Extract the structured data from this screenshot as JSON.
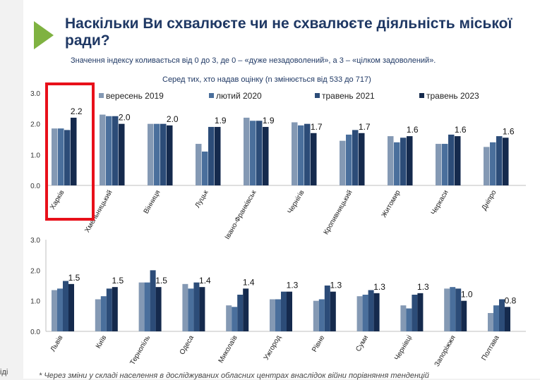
{
  "header": {
    "title": "Наскільки Ви схвалюєте чи не схвалюєте діяльність міської ради?",
    "subtitle": "Значення індексу коливається від 0 до 3, де 0 – «дуже незадоволений», а 3 – «цілком задоволений».",
    "caption": "Серед тих, хто надав оцінку (n змінюється від 533 до 717)"
  },
  "footnote": "* Через зміни у складі населення в досліджуваних обласних центрах внаслідок війни порівняння тенденцій",
  "edge_text": "іді",
  "colors": {
    "s2019": "#8499b4",
    "s2020": "#4a6f9c",
    "s2021": "#2c4c78",
    "s2023": "#152a4d",
    "highlight": "#e8101a",
    "arrow": "#7fb241"
  },
  "chart_data": [
    {
      "type": "bar",
      "title": "",
      "ylim": [
        0,
        3
      ],
      "yticks": [
        "0.0",
        "1.0",
        "2.0",
        "3.0"
      ],
      "legend": [
        "вересень 2019",
        "лютий 2020",
        "травень 2021",
        "травень 2023"
      ],
      "legend_position": "top",
      "categories": [
        "Харків",
        "Хмельницький",
        "Вінниця",
        "Луцьк",
        "Івано-Франківськ",
        "Чернігів",
        "Кропивницький",
        "Житомир",
        "Черкаси",
        "Дніпро"
      ],
      "series": [
        {
          "name": "вересень 2019",
          "values": [
            1.85,
            2.3,
            2.0,
            1.35,
            2.2,
            2.05,
            1.45,
            1.6,
            1.35,
            1.25
          ]
        },
        {
          "name": "лютий 2020",
          "values": [
            1.85,
            2.25,
            2.0,
            1.1,
            2.1,
            1.95,
            1.65,
            1.4,
            1.35,
            1.4
          ]
        },
        {
          "name": "травень 2021",
          "values": [
            1.8,
            2.25,
            2.0,
            1.9,
            2.1,
            2.0,
            1.8,
            1.55,
            1.65,
            1.6
          ]
        },
        {
          "name": "травень 2023",
          "values": [
            2.2,
            2.0,
            1.95,
            1.9,
            1.9,
            1.7,
            1.7,
            1.6,
            1.6,
            1.55
          ]
        }
      ],
      "labels": [
        "2.2",
        "2.0",
        "2.0",
        "1.9",
        "1.9",
        "1.7",
        "1.7",
        "1.6",
        "1.6",
        "1.6"
      ]
    },
    {
      "type": "bar",
      "title": "",
      "ylim": [
        0,
        3
      ],
      "yticks": [
        "0.0",
        "1.0",
        "2.0",
        "3.0"
      ],
      "categories": [
        "Львів",
        "Київ",
        "Тернопіль",
        "Одеса",
        "Миколаїв",
        "Ужгород",
        "Рівне",
        "Суми",
        "Чернівці",
        "Запоріжжя",
        "Полтава"
      ],
      "series": [
        {
          "name": "вересень 2019",
          "values": [
            1.35,
            1.05,
            1.6,
            1.55,
            0.85,
            1.05,
            1.0,
            1.15,
            0.85,
            1.4,
            0.6
          ]
        },
        {
          "name": "лютий 2020",
          "values": [
            1.4,
            1.15,
            1.6,
            1.4,
            0.8,
            1.05,
            1.05,
            1.2,
            0.75,
            1.45,
            0.85
          ]
        },
        {
          "name": "травень 2021",
          "values": [
            1.65,
            1.4,
            2.0,
            1.6,
            1.2,
            1.3,
            1.5,
            1.35,
            1.2,
            1.4,
            1.05
          ]
        },
        {
          "name": "травень 2023",
          "values": [
            1.55,
            1.45,
            1.45,
            1.45,
            1.4,
            1.3,
            1.3,
            1.25,
            1.25,
            1.0,
            0.8
          ]
        }
      ],
      "labels": [
        "1.5",
        "1.5",
        "1.5",
        "1.4",
        "1.4",
        "1.3",
        "1.3",
        "1.3",
        "1.3",
        "1.0",
        "0.8"
      ]
    }
  ]
}
